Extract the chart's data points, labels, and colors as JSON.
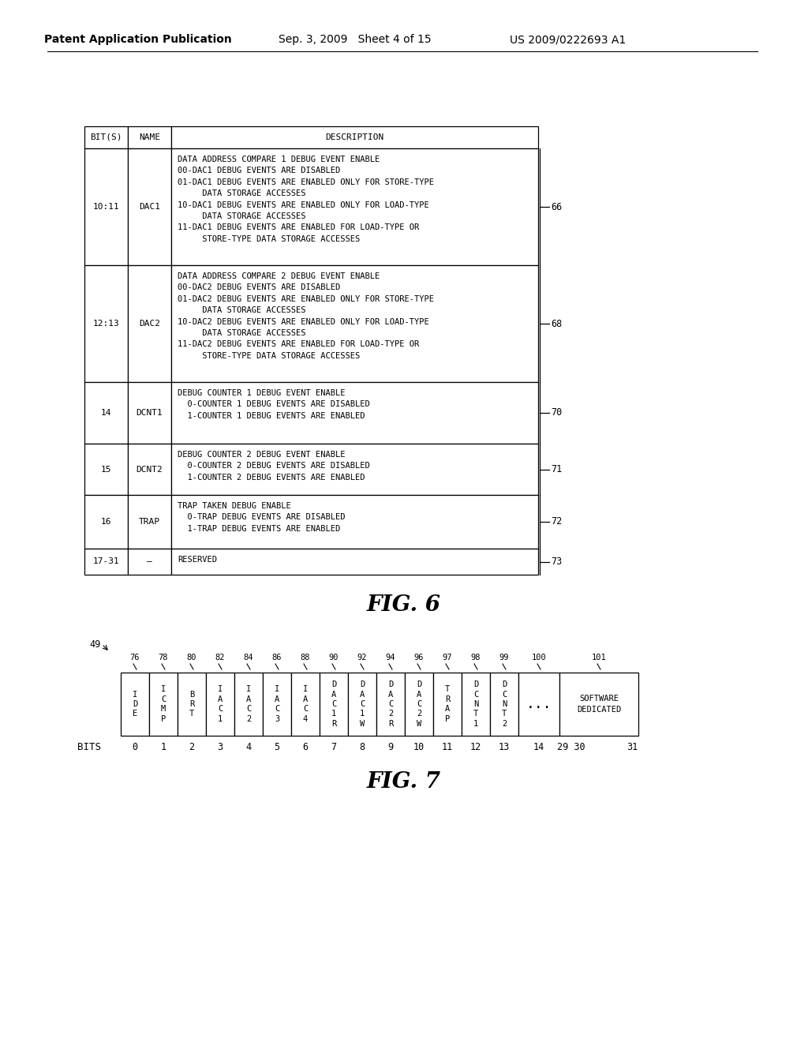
{
  "header_text_left": "Patent Application Publication",
  "header_text_mid": "Sep. 3, 2009   Sheet 4 of 15",
  "header_text_right": "US 2009/0222693 A1",
  "fig6_title": "FIG. 6",
  "fig7_title": "FIG. 7",
  "table_rows": [
    {
      "bits": "10:11",
      "name": "DAC1",
      "description": "DATA ADDRESS COMPARE 1 DEBUG EVENT ENABLE\n00-DAC1 DEBUG EVENTS ARE DISABLED\n01-DAC1 DEBUG EVENTS ARE ENABLED ONLY FOR STORE-TYPE\n     DATA STORAGE ACCESSES\n10-DAC1 DEBUG EVENTS ARE ENABLED ONLY FOR LOAD-TYPE\n     DATA STORAGE ACCESSES\n11-DAC1 DEBUG EVENTS ARE ENABLED FOR LOAD-TYPE OR\n     STORE-TYPE DATA STORAGE ACCESSES",
      "label": "66"
    },
    {
      "bits": "12:13",
      "name": "DAC2",
      "description": "DATA ADDRESS COMPARE 2 DEBUG EVENT ENABLE\n00-DAC2 DEBUG EVENTS ARE DISABLED\n01-DAC2 DEBUG EVENTS ARE ENABLED ONLY FOR STORE-TYPE\n     DATA STORAGE ACCESSES\n10-DAC2 DEBUG EVENTS ARE ENABLED ONLY FOR LOAD-TYPE\n     DATA STORAGE ACCESSES\n11-DAC2 DEBUG EVENTS ARE ENABLED FOR LOAD-TYPE OR\n     STORE-TYPE DATA STORAGE ACCESSES",
      "label": "68"
    },
    {
      "bits": "14",
      "name": "DCNT1",
      "description": "DEBUG COUNTER 1 DEBUG EVENT ENABLE\n  0-COUNTER 1 DEBUG EVENTS ARE DISABLED\n  1-COUNTER 1 DEBUG EVENTS ARE ENABLED",
      "label": "70"
    },
    {
      "bits": "15",
      "name": "DCNT2",
      "description": "DEBUG COUNTER 2 DEBUG EVENT ENABLE\n  0-COUNTER 2 DEBUG EVENTS ARE DISABLED\n  1-COUNTER 2 DEBUG EVENTS ARE ENABLED",
      "label": "71"
    },
    {
      "bits": "16",
      "name": "TRAP",
      "description": "TRAP TAKEN DEBUG ENABLE\n  0-TRAP DEBUG EVENTS ARE DISABLED\n  1-TRAP DEBUG EVENTS ARE ENABLED",
      "label": "72"
    },
    {
      "bits": "17-31",
      "name": "–",
      "description": "RESERVED",
      "label": "73"
    }
  ],
  "fig7_label": "49",
  "fig7_top_labels": [
    "76",
    "78",
    "80",
    "82",
    "84",
    "86",
    "88",
    "90",
    "92",
    "94",
    "96",
    "97",
    "98",
    "99",
    "100",
    "101"
  ],
  "fig7_cells": [
    {
      "text": "I\nD\nE"
    },
    {
      "text": "I\nC\nM\nP"
    },
    {
      "text": "B\nR\nT"
    },
    {
      "text": "I\nA\nC\n1"
    },
    {
      "text": "I\nA\nC\n2"
    },
    {
      "text": "I\nA\nC\n3"
    },
    {
      "text": "I\nA\nC\n4"
    },
    {
      "text": "D\nA\nC\n1\nR"
    },
    {
      "text": "D\nA\nC\n1\nW"
    },
    {
      "text": "D\nA\nC\n2\nR"
    },
    {
      "text": "D\nA\nC\n2\nW"
    },
    {
      "text": "T\nR\nA\nP"
    },
    {
      "text": "D\nC\nN\nT\n1"
    },
    {
      "text": "D\nC\nN\nT\n2"
    },
    {
      "text": "..."
    },
    {
      "text": "SOFTWARE\nDEDICATED"
    }
  ]
}
